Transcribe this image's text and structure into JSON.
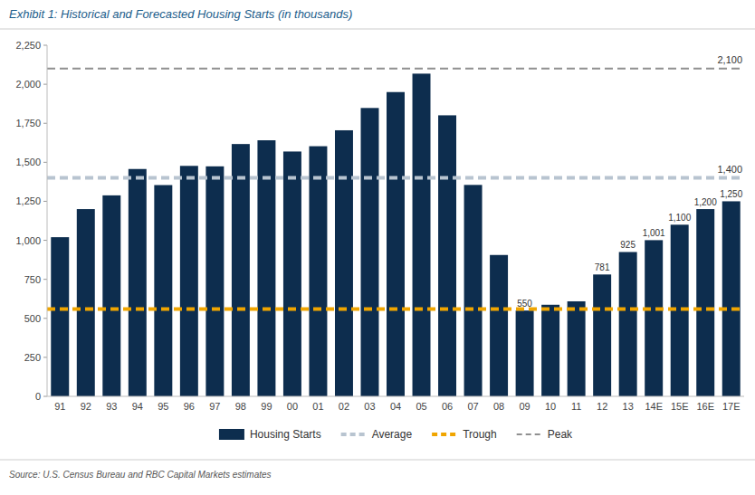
{
  "chart_data": {
    "type": "bar",
    "title": "Exhibit 1: Historical and Forecasted Housing Starts (in thousands)",
    "source": "Source: U.S. Census Bureau and RBC Capital Markets estimates",
    "categories": [
      "91",
      "92",
      "93",
      "94",
      "95",
      "96",
      "97",
      "98",
      "99",
      "00",
      "01",
      "02",
      "03",
      "04",
      "05",
      "06",
      "07",
      "08",
      "09",
      "10",
      "11",
      "12",
      "13",
      "14E",
      "15E",
      "16E",
      "17E"
    ],
    "series": [
      {
        "name": "Housing Starts",
        "color": "#0d2d4e",
        "values": [
          1020,
          1200,
          1288,
          1457,
          1354,
          1477,
          1474,
          1617,
          1641,
          1569,
          1603,
          1705,
          1848,
          1950,
          2068,
          1801,
          1355,
          906,
          550,
          587,
          609,
          781,
          925,
          1001,
          1100,
          1200,
          1250
        ],
        "value_labels": [
          null,
          null,
          null,
          null,
          null,
          null,
          null,
          null,
          null,
          null,
          null,
          null,
          null,
          null,
          null,
          null,
          null,
          null,
          "550",
          null,
          null,
          "781",
          "925",
          "1,001",
          "1,100",
          "1,200",
          "1,250"
        ]
      }
    ],
    "reference_lines": [
      {
        "name": "Average",
        "value": 1400,
        "label": "1,400",
        "color": "#b8c4d0",
        "line_style": "dashed"
      },
      {
        "name": "Trough",
        "value": 560,
        "color": "#f0a500",
        "line_style": "dashed"
      },
      {
        "name": "Peak",
        "value": 2100,
        "label": "2,100",
        "color": "#909090",
        "line_style": "dashed"
      }
    ],
    "ylim": [
      0,
      2250
    ],
    "yticks": [
      0,
      250,
      500,
      750,
      {
        "value": 1000,
        "label": "1,000"
      },
      {
        "value": 1250,
        "label": "1,250"
      },
      {
        "value": 1500,
        "label": "1,500"
      },
      {
        "value": 1750,
        "label": "1,750"
      },
      {
        "value": 2000,
        "label": "2,000"
      },
      {
        "value": 2250,
        "label": "2,250"
      }
    ],
    "grid": false,
    "legend": "bottom"
  }
}
